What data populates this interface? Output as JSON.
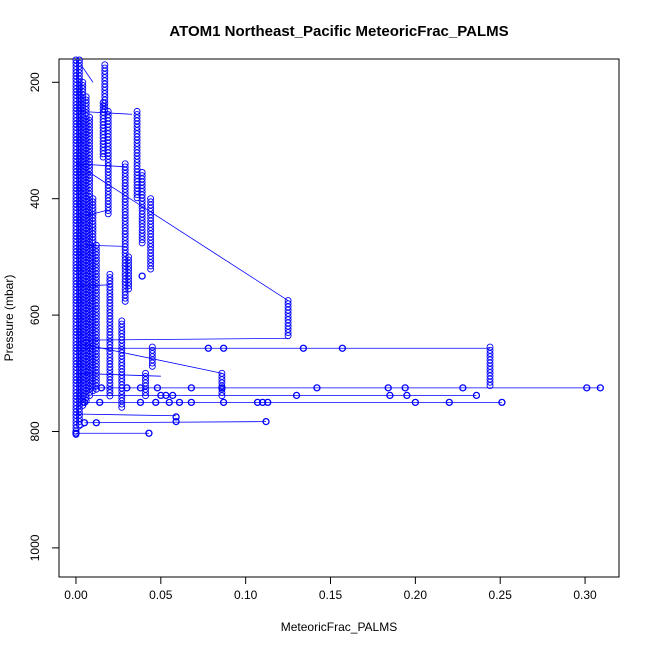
{
  "chart_data": {
    "type": "scatter",
    "title": "ATOM1 Northeast_Pacific MeteoricFrac_PALMS",
    "xlabel": "MeteoricFrac_PALMS",
    "ylabel": "Pressure (mbar)",
    "xlim": [
      -0.01,
      0.32
    ],
    "ylim": [
      1050,
      160
    ],
    "y_reversed": true,
    "x_ticks": [
      0.0,
      0.05,
      0.1,
      0.15,
      0.2,
      0.25,
      0.3
    ],
    "x_tick_labels": [
      "0.00",
      "0.05",
      "0.10",
      "0.15",
      "0.20",
      "0.25",
      "0.30"
    ],
    "y_ticks": [
      200,
      400,
      600,
      800,
      1000
    ],
    "y_tick_labels": [
      "200",
      "400",
      "600",
      "800",
      "1000"
    ],
    "marker": "open-circle",
    "color": "#0000ff",
    "grid": false,
    "legend": "none",
    "columns": [
      {
        "x": 0.0,
        "p_top": 160,
        "p_bottom": 805
      },
      {
        "x": 0.002,
        "p_top": 160,
        "p_bottom": 790
      },
      {
        "x": 0.004,
        "p_top": 200,
        "p_bottom": 760
      },
      {
        "x": 0.006,
        "p_top": 225,
        "p_bottom": 750
      },
      {
        "x": 0.008,
        "p_top": 260,
        "p_bottom": 740
      },
      {
        "x": 0.01,
        "p_top": 400,
        "p_bottom": 735
      },
      {
        "x": 0.012,
        "p_top": 480,
        "p_bottom": 730
      },
      {
        "x": 0.016,
        "p_top": 235,
        "p_bottom": 330
      },
      {
        "x": 0.017,
        "p_top": 170,
        "p_bottom": 250
      },
      {
        "x": 0.019,
        "p_top": 250,
        "p_bottom": 430
      },
      {
        "x": 0.02,
        "p_top": 530,
        "p_bottom": 740
      },
      {
        "x": 0.027,
        "p_top": 610,
        "p_bottom": 760
      },
      {
        "x": 0.029,
        "p_top": 340,
        "p_bottom": 580
      },
      {
        "x": 0.031,
        "p_top": 500,
        "p_bottom": 560
      },
      {
        "x": 0.036,
        "p_top": 250,
        "p_bottom": 400
      },
      {
        "x": 0.039,
        "p_top": 355,
        "p_bottom": 480
      },
      {
        "x": 0.041,
        "p_top": 700,
        "p_bottom": 740
      },
      {
        "x": 0.044,
        "p_top": 400,
        "p_bottom": 525
      },
      {
        "x": 0.045,
        "p_top": 655,
        "p_bottom": 690
      },
      {
        "x": 0.086,
        "p_top": 700,
        "p_bottom": 740
      },
      {
        "x": 0.125,
        "p_top": 575,
        "p_bottom": 640
      },
      {
        "x": 0.244,
        "p_top": 655,
        "p_bottom": 725
      }
    ],
    "points": [
      {
        "x": 0.0,
        "y": 803
      },
      {
        "x": 0.043,
        "y": 803
      },
      {
        "x": 0.005,
        "y": 785
      },
      {
        "x": 0.012,
        "y": 785
      },
      {
        "x": 0.059,
        "y": 783
      },
      {
        "x": 0.112,
        "y": 783
      },
      {
        "x": 0.059,
        "y": 775
      },
      {
        "x": 0.005,
        "y": 750
      },
      {
        "x": 0.014,
        "y": 750
      },
      {
        "x": 0.038,
        "y": 750
      },
      {
        "x": 0.047,
        "y": 750
      },
      {
        "x": 0.055,
        "y": 750
      },
      {
        "x": 0.061,
        "y": 750
      },
      {
        "x": 0.068,
        "y": 750
      },
      {
        "x": 0.087,
        "y": 750
      },
      {
        "x": 0.107,
        "y": 750
      },
      {
        "x": 0.11,
        "y": 750
      },
      {
        "x": 0.113,
        "y": 750
      },
      {
        "x": 0.2,
        "y": 750
      },
      {
        "x": 0.22,
        "y": 750
      },
      {
        "x": 0.251,
        "y": 750
      },
      {
        "x": 0.05,
        "y": 738
      },
      {
        "x": 0.053,
        "y": 738
      },
      {
        "x": 0.057,
        "y": 738
      },
      {
        "x": 0.13,
        "y": 738
      },
      {
        "x": 0.185,
        "y": 738
      },
      {
        "x": 0.195,
        "y": 738
      },
      {
        "x": 0.236,
        "y": 738
      },
      {
        "x": 0.015,
        "y": 725
      },
      {
        "x": 0.03,
        "y": 725
      },
      {
        "x": 0.038,
        "y": 725
      },
      {
        "x": 0.048,
        "y": 725
      },
      {
        "x": 0.068,
        "y": 725
      },
      {
        "x": 0.086,
        "y": 725
      },
      {
        "x": 0.142,
        "y": 725
      },
      {
        "x": 0.184,
        "y": 725
      },
      {
        "x": 0.194,
        "y": 725
      },
      {
        "x": 0.228,
        "y": 725
      },
      {
        "x": 0.301,
        "y": 725
      },
      {
        "x": 0.309,
        "y": 725
      },
      {
        "x": 0.078,
        "y": 657
      },
      {
        "x": 0.087,
        "y": 657
      },
      {
        "x": 0.134,
        "y": 657
      },
      {
        "x": 0.157,
        "y": 657
      },
      {
        "x": 0.039,
        "y": 533
      }
    ],
    "connections": [
      {
        "x1": 0.0,
        "y1": 803,
        "x2": 0.043,
        "y2": 803
      },
      {
        "x1": 0.005,
        "y1": 785,
        "x2": 0.112,
        "y2": 783
      },
      {
        "x1": 0.005,
        "y1": 750,
        "x2": 0.251,
        "y2": 750
      },
      {
        "x1": 0.01,
        "y1": 738,
        "x2": 0.236,
        "y2": 738
      },
      {
        "x1": 0.012,
        "y1": 725,
        "x2": 0.309,
        "y2": 725
      },
      {
        "x1": 0.004,
        "y1": 643,
        "x2": 0.125,
        "y2": 640
      },
      {
        "x1": 0.004,
        "y1": 657,
        "x2": 0.244,
        "y2": 657
      },
      {
        "x1": 0.004,
        "y1": 650,
        "x2": 0.086,
        "y2": 700
      },
      {
        "x1": 0.0,
        "y1": 340,
        "x2": 0.125,
        "y2": 575
      },
      {
        "x1": 0.005,
        "y1": 430,
        "x2": 0.018,
        "y2": 420
      },
      {
        "x1": 0.006,
        "y1": 480,
        "x2": 0.029,
        "y2": 482
      },
      {
        "x1": 0.002,
        "y1": 250,
        "x2": 0.033,
        "y2": 255
      },
      {
        "x1": 0.0,
        "y1": 340,
        "x2": 0.028,
        "y2": 345
      },
      {
        "x1": 0.003,
        "y1": 550,
        "x2": 0.02,
        "y2": 548
      },
      {
        "x1": 0.0,
        "y1": 800,
        "x2": 0.005,
        "y2": 790
      },
      {
        "x1": 0.003,
        "y1": 170,
        "x2": 0.01,
        "y2": 200
      },
      {
        "x1": 0.0,
        "y1": 700,
        "x2": 0.05,
        "y2": 705
      },
      {
        "x1": 0.0,
        "y1": 770,
        "x2": 0.059,
        "y2": 773
      }
    ]
  }
}
